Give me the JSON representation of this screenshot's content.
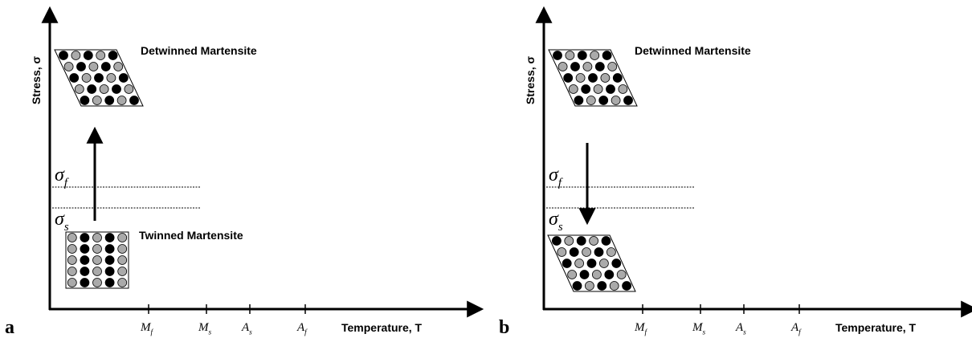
{
  "panels": [
    {
      "label": "a",
      "y_axis": "Stress, σ",
      "x_axis": "Temperature, T",
      "ticks": [
        {
          "symbol": "M",
          "sub": "f"
        },
        {
          "symbol": "M",
          "sub": "s"
        },
        {
          "symbol": "A",
          "sub": "s"
        },
        {
          "symbol": "A",
          "sub": "f"
        }
      ],
      "stress_levels": [
        {
          "symbol": "σ",
          "sub": "f"
        },
        {
          "symbol": "σ",
          "sub": "s"
        }
      ],
      "top_phase": "Detwinned Martensite",
      "bottom_phase": "Twinned Martensite"
    },
    {
      "label": "b",
      "y_axis": "Stress, σ",
      "x_axis": "Temperature, T",
      "ticks": [
        {
          "symbol": "M",
          "sub": "f"
        },
        {
          "symbol": "M",
          "sub": "s"
        },
        {
          "symbol": "A",
          "sub": "s"
        },
        {
          "symbol": "A",
          "sub": "f"
        }
      ],
      "stress_levels": [
        {
          "symbol": "σ",
          "sub": "f"
        },
        {
          "symbol": "σ",
          "sub": "s"
        }
      ],
      "top_phase": "Detwinned Martensite"
    }
  ]
}
